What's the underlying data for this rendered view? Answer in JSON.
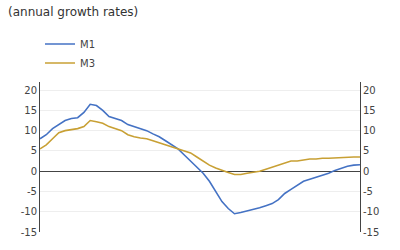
{
  "chart_data": {
    "type": "line",
    "title": "(annual growth rates)",
    "categories": [
      null,
      null,
      null,
      null,
      null,
      null,
      null,
      null,
      null,
      null,
      null,
      null,
      null,
      null,
      null,
      null,
      null,
      null,
      null,
      null,
      null,
      null,
      null,
      null,
      null,
      null,
      null,
      null,
      null,
      null,
      null,
      null,
      null,
      null,
      null,
      null,
      null,
      null,
      null,
      null,
      null,
      null,
      null,
      null,
      null,
      null,
      null,
      null,
      null,
      null,
      null,
      null
    ],
    "series": [
      {
        "name": "M1",
        "color": "#4472c4",
        "values": [
          8.0,
          9.0,
          10.5,
          11.5,
          12.5,
          13.0,
          13.2,
          14.5,
          16.5,
          16.2,
          15.0,
          13.5,
          13.0,
          12.5,
          11.5,
          11.0,
          10.5,
          10.0,
          9.2,
          8.5,
          7.5,
          6.5,
          5.5,
          4.0,
          2.5,
          1.0,
          -0.5,
          -2.5,
          -5.0,
          -7.5,
          -9.2,
          -10.5,
          -10.2,
          -9.8,
          -9.5,
          -9.0,
          -8.5,
          -8.0,
          -7.0,
          -5.5,
          -4.5,
          -3.5,
          -2.5,
          -2.0,
          -1.5,
          -1.0,
          -0.5,
          0.2,
          0.8,
          1.2,
          1.5,
          1.6
        ]
      },
      {
        "name": "M3",
        "color": "#c8a034",
        "values": [
          5.5,
          6.5,
          8.0,
          9.5,
          10.0,
          10.2,
          10.5,
          11.0,
          12.5,
          12.2,
          11.8,
          11.0,
          10.5,
          10.0,
          9.0,
          8.5,
          8.2,
          8.0,
          7.5,
          7.0,
          6.5,
          6.0,
          5.5,
          5.0,
          4.5,
          3.5,
          2.5,
          1.5,
          0.8,
          0.2,
          -0.3,
          -0.8,
          -0.8,
          -0.5,
          -0.2,
          0.0,
          0.5,
          1.0,
          1.5,
          2.0,
          2.5,
          2.5,
          2.8,
          3.0,
          3.0,
          3.2,
          3.2,
          3.3,
          3.4,
          3.4,
          3.5,
          3.5
        ]
      }
    ],
    "ylim": [
      -15,
      22
    ],
    "yticks": [
      -15,
      -10,
      -5,
      0,
      5,
      10,
      15,
      20
    ],
    "y2lim": [
      -15,
      22
    ],
    "y2ticks": [
      -15,
      -10,
      -5,
      0,
      5,
      10,
      15,
      20
    ],
    "grid": true,
    "legend": "upper left",
    "tick_labels": "y"
  }
}
